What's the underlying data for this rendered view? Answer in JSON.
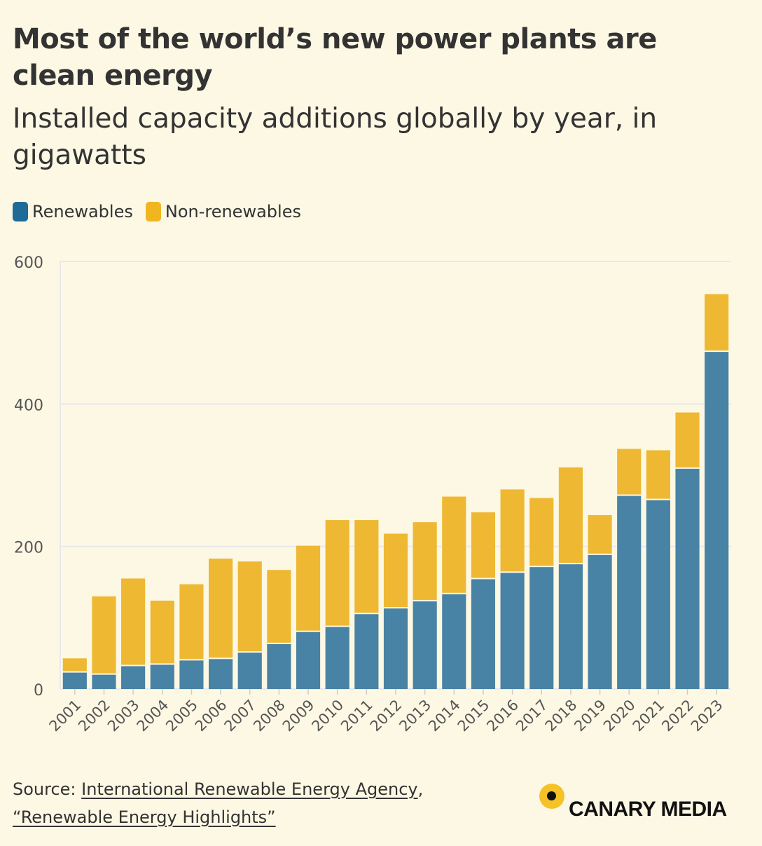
{
  "chart_data": {
    "type": "bar",
    "stacked": true,
    "title": "Most of the world’s new power plants are clean energy",
    "subtitle": "Installed capacity additions globally by year, in gigawatts",
    "categories": [
      "2001",
      "2002",
      "2003",
      "2004",
      "2005",
      "2006",
      "2007",
      "2008",
      "2009",
      "2010",
      "2011",
      "2012",
      "2013",
      "2014",
      "2015",
      "2016",
      "2017",
      "2018",
      "2019",
      "2020",
      "2021",
      "2022",
      "2023"
    ],
    "series": [
      {
        "name": "Renewables",
        "color": "#4882a4",
        "values": [
          23,
          20,
          32,
          34,
          40,
          42,
          51,
          63,
          80,
          87,
          105,
          113,
          123,
          133,
          154,
          163,
          171,
          175,
          188,
          271,
          265,
          309,
          473
        ]
      },
      {
        "name": "Non-renewables",
        "color": "#eeb832",
        "values": [
          20,
          110,
          123,
          90,
          107,
          141,
          128,
          104,
          121,
          150,
          132,
          105,
          111,
          137,
          94,
          117,
          97,
          136,
          56,
          66,
          70,
          79,
          81
        ]
      }
    ],
    "ylim": [
      0,
      600
    ],
    "yticks": [
      0,
      200,
      400,
      600
    ],
    "grid": true,
    "legend": "top-left",
    "xlabel": "",
    "ylabel": ""
  },
  "source": {
    "prefix": "Source: ",
    "link1": "International Renewable Energy Agency",
    "separator": ",",
    "link2": "“Renewable Energy Highlights”"
  },
  "brand": {
    "name": "CANARY MEDIA"
  }
}
